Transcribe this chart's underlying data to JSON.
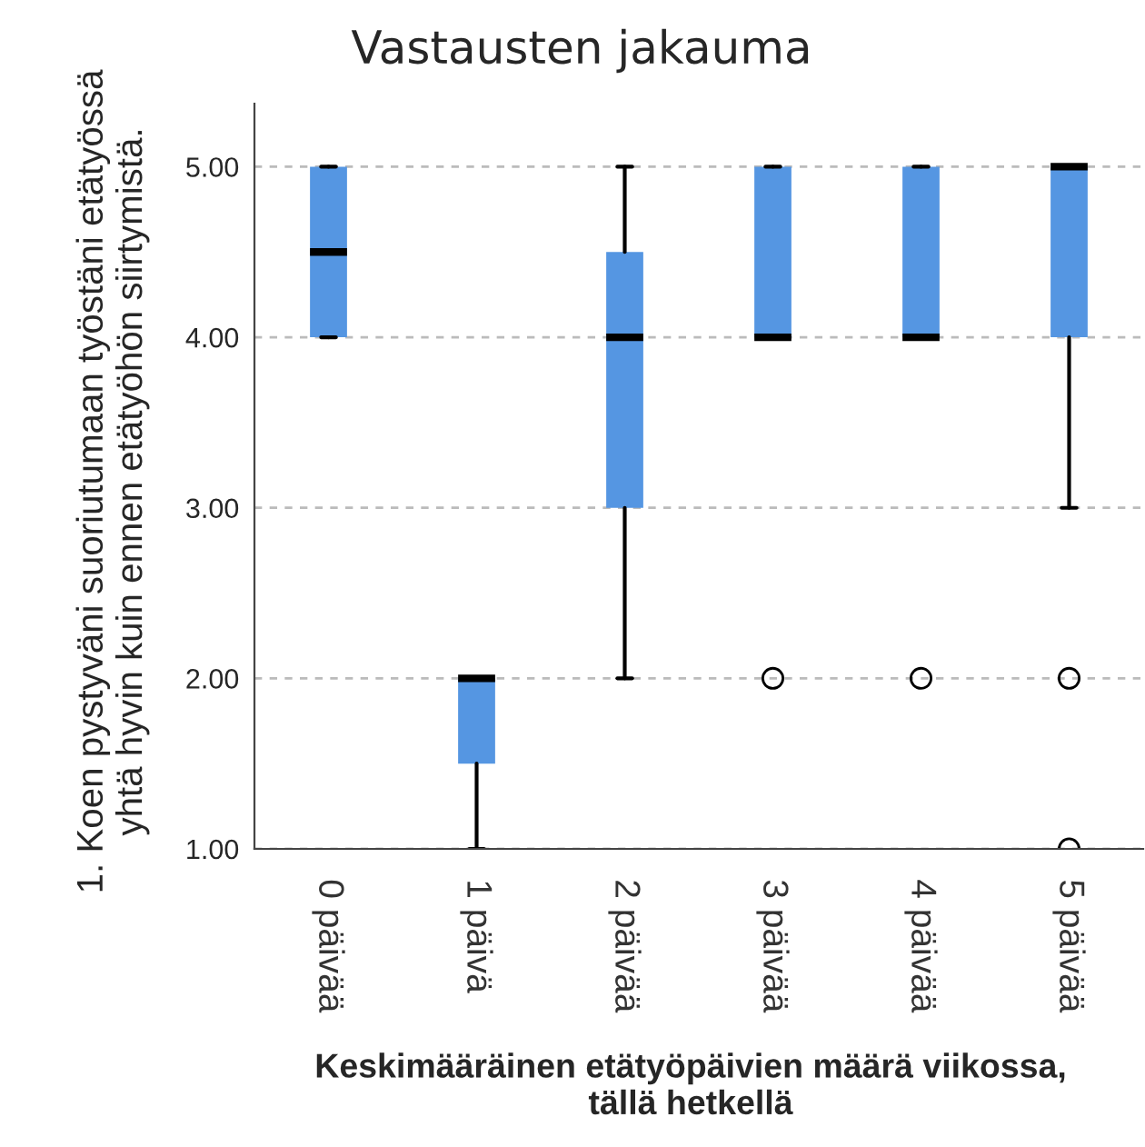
{
  "chart_data": {
    "type": "box",
    "title": "Vastausten jakauma",
    "xlabel": "Keskimääräinen etätyöpäivien määrä viikossa, tällä hetkellä",
    "ylabel": "1. Koen pystyväni suoriutumaan työstäni etätyössä yhtä hyvin kuin ennen etätyöhön siirtymistä.",
    "categories": [
      "0 päivää",
      "1 päivä",
      "2 päivää",
      "3 päivää",
      "4 päivää",
      "5 päivää"
    ],
    "color": "#5596e2",
    "boxes": [
      {
        "low": 4,
        "q1": 4,
        "median": 4.5,
        "q3": 5,
        "high": 5
      },
      {
        "low": 1,
        "q1": 1.5,
        "median": 2,
        "q3": 2,
        "high": 2
      },
      {
        "low": 2,
        "q1": 3,
        "median": 4,
        "q3": 4.5,
        "high": 5
      },
      {
        "low": 4,
        "q1": 4,
        "median": 4,
        "q3": 5,
        "high": 5,
        "outliers": [
          2
        ]
      },
      {
        "low": 4,
        "q1": 4,
        "median": 4,
        "q3": 5,
        "high": 5,
        "outliers": [
          2
        ]
      },
      {
        "low": 3,
        "q1": 4,
        "median": 5,
        "q3": 5,
        "high": 5,
        "outliers": [
          2,
          1
        ]
      }
    ],
    "ylim": [
      1,
      5.37
    ],
    "yticks": [
      {
        "value": 1,
        "label": "1.00"
      },
      {
        "value": 2,
        "label": "2.00"
      },
      {
        "value": 3,
        "label": "3.00"
      },
      {
        "value": 4,
        "label": "4.00"
      },
      {
        "value": 5,
        "label": "5.00"
      }
    ],
    "grid": "y"
  }
}
